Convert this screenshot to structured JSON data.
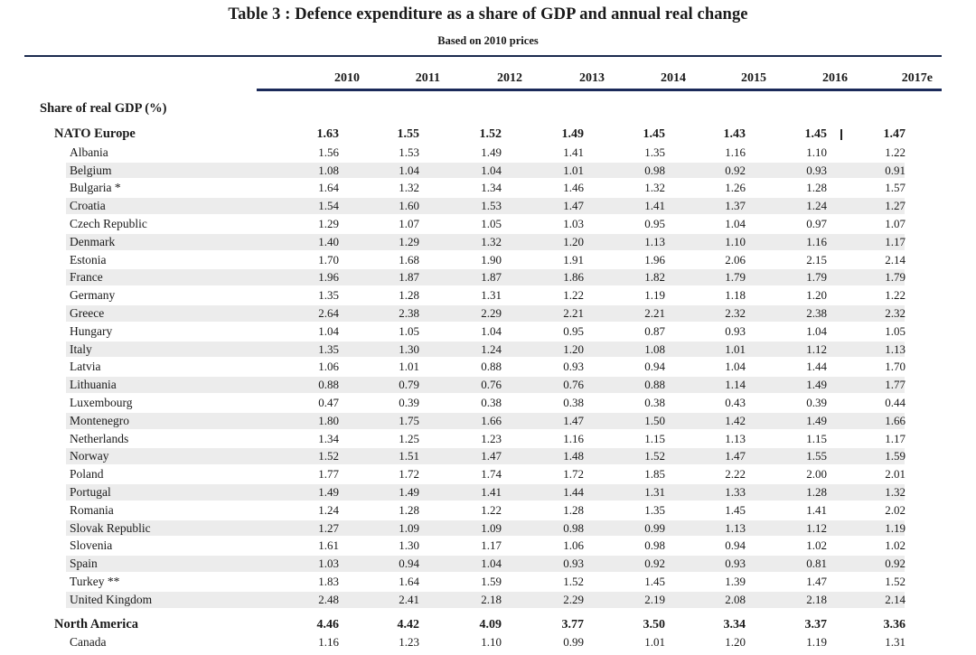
{
  "document": {
    "title": "Table 3 : Defence expenditure as a share of GDP and annual real change",
    "subtitle": "Based on 2010 prices",
    "section_label": "Share of real GDP (%)",
    "years": [
      "2010",
      "2011",
      "2012",
      "2013",
      "2014",
      "2015",
      "2016",
      "2017e"
    ],
    "estimate_marker": "|"
  },
  "chart_data": {
    "type": "table",
    "title": "Table 3 : Defence expenditure as a share of GDP and annual real change",
    "subtitle": "Based on 2010 prices",
    "section": "Share of real GDP (%)",
    "columns": [
      "2010",
      "2011",
      "2012",
      "2013",
      "2014",
      "2015",
      "2016",
      "2017e"
    ],
    "rows": [
      {
        "name": "NATO Europe",
        "group": true,
        "values": [
          "1.63",
          "1.55",
          "1.52",
          "1.49",
          "1.45",
          "1.43",
          "1.45",
          "1.47"
        ]
      },
      {
        "name": "Albania",
        "values": [
          "1.56",
          "1.53",
          "1.49",
          "1.41",
          "1.35",
          "1.16",
          "1.10",
          "1.22"
        ]
      },
      {
        "name": "Belgium",
        "values": [
          "1.08",
          "1.04",
          "1.04",
          "1.01",
          "0.98",
          "0.92",
          "0.93",
          "0.91"
        ]
      },
      {
        "name": "Bulgaria *",
        "values": [
          "1.64",
          "1.32",
          "1.34",
          "1.46",
          "1.32",
          "1.26",
          "1.28",
          "1.57"
        ]
      },
      {
        "name": "Croatia",
        "values": [
          "1.54",
          "1.60",
          "1.53",
          "1.47",
          "1.41",
          "1.37",
          "1.24",
          "1.27"
        ]
      },
      {
        "name": "Czech Republic",
        "values": [
          "1.29",
          "1.07",
          "1.05",
          "1.03",
          "0.95",
          "1.04",
          "0.97",
          "1.07"
        ]
      },
      {
        "name": "Denmark",
        "values": [
          "1.40",
          "1.29",
          "1.32",
          "1.20",
          "1.13",
          "1.10",
          "1.16",
          "1.17"
        ]
      },
      {
        "name": "Estonia",
        "values": [
          "1.70",
          "1.68",
          "1.90",
          "1.91",
          "1.96",
          "2.06",
          "2.15",
          "2.14"
        ]
      },
      {
        "name": "France",
        "values": [
          "1.96",
          "1.87",
          "1.87",
          "1.86",
          "1.82",
          "1.79",
          "1.79",
          "1.79"
        ]
      },
      {
        "name": "Germany",
        "values": [
          "1.35",
          "1.28",
          "1.31",
          "1.22",
          "1.19",
          "1.18",
          "1.20",
          "1.22"
        ]
      },
      {
        "name": "Greece",
        "values": [
          "2.64",
          "2.38",
          "2.29",
          "2.21",
          "2.21",
          "2.32",
          "2.38",
          "2.32"
        ]
      },
      {
        "name": "Hungary",
        "values": [
          "1.04",
          "1.05",
          "1.04",
          "0.95",
          "0.87",
          "0.93",
          "1.04",
          "1.05"
        ]
      },
      {
        "name": "Italy",
        "values": [
          "1.35",
          "1.30",
          "1.24",
          "1.20",
          "1.08",
          "1.01",
          "1.12",
          "1.13"
        ]
      },
      {
        "name": "Latvia",
        "values": [
          "1.06",
          "1.01",
          "0.88",
          "0.93",
          "0.94",
          "1.04",
          "1.44",
          "1.70"
        ]
      },
      {
        "name": "Lithuania",
        "values": [
          "0.88",
          "0.79",
          "0.76",
          "0.76",
          "0.88",
          "1.14",
          "1.49",
          "1.77"
        ]
      },
      {
        "name": "Luxembourg",
        "values": [
          "0.47",
          "0.39",
          "0.38",
          "0.38",
          "0.38",
          "0.43",
          "0.39",
          "0.44"
        ]
      },
      {
        "name": "Montenegro",
        "values": [
          "1.80",
          "1.75",
          "1.66",
          "1.47",
          "1.50",
          "1.42",
          "1.49",
          "1.66"
        ]
      },
      {
        "name": "Netherlands",
        "values": [
          "1.34",
          "1.25",
          "1.23",
          "1.16",
          "1.15",
          "1.13",
          "1.15",
          "1.17"
        ]
      },
      {
        "name": "Norway",
        "values": [
          "1.52",
          "1.51",
          "1.47",
          "1.48",
          "1.52",
          "1.47",
          "1.55",
          "1.59"
        ]
      },
      {
        "name": "Poland",
        "values": [
          "1.77",
          "1.72",
          "1.74",
          "1.72",
          "1.85",
          "2.22",
          "2.00",
          "2.01"
        ]
      },
      {
        "name": "Portugal",
        "values": [
          "1.49",
          "1.49",
          "1.41",
          "1.44",
          "1.31",
          "1.33",
          "1.28",
          "1.32"
        ]
      },
      {
        "name": "Romania",
        "values": [
          "1.24",
          "1.28",
          "1.22",
          "1.28",
          "1.35",
          "1.45",
          "1.41",
          "2.02"
        ]
      },
      {
        "name": "Slovak Republic",
        "values": [
          "1.27",
          "1.09",
          "1.09",
          "0.98",
          "0.99",
          "1.13",
          "1.12",
          "1.19"
        ]
      },
      {
        "name": "Slovenia",
        "values": [
          "1.61",
          "1.30",
          "1.17",
          "1.06",
          "0.98",
          "0.94",
          "1.02",
          "1.02"
        ]
      },
      {
        "name": "Spain",
        "values": [
          "1.03",
          "0.94",
          "1.04",
          "0.93",
          "0.92",
          "0.93",
          "0.81",
          "0.92"
        ]
      },
      {
        "name": "Turkey **",
        "values": [
          "1.83",
          "1.64",
          "1.59",
          "1.52",
          "1.45",
          "1.39",
          "1.47",
          "1.52"
        ]
      },
      {
        "name": "United Kingdom",
        "values": [
          "2.48",
          "2.41",
          "2.18",
          "2.29",
          "2.19",
          "2.08",
          "2.18",
          "2.14"
        ]
      },
      {
        "name": "North America",
        "group": true,
        "values": [
          "4.46",
          "4.42",
          "4.09",
          "3.77",
          "3.50",
          "3.34",
          "3.37",
          "3.36"
        ]
      },
      {
        "name": "Canada",
        "values": [
          "1.16",
          "1.23",
          "1.10",
          "0.99",
          "1.01",
          "1.20",
          "1.19",
          "1.31"
        ]
      }
    ]
  }
}
